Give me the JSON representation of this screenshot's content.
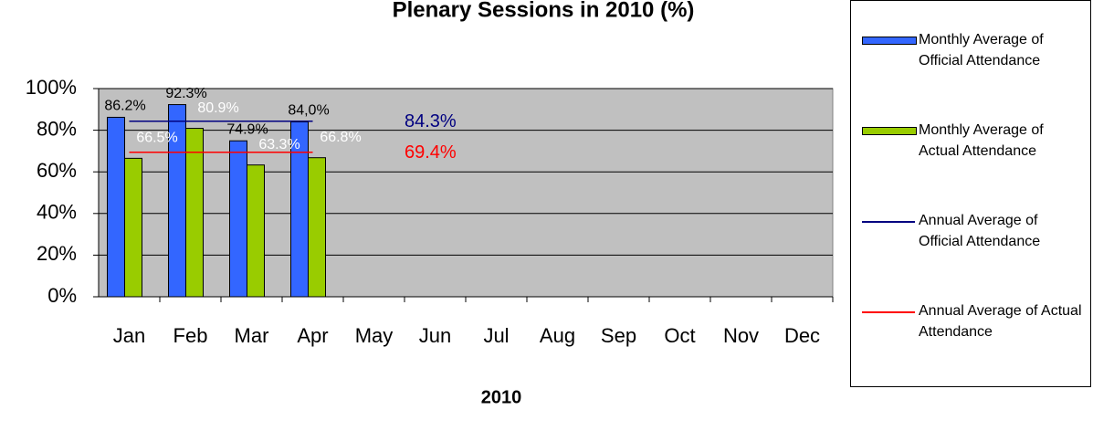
{
  "chart_data": {
    "type": "bar",
    "title": "Plenary Sessions in 2010 (%)",
    "xlabel": "2010",
    "categories": [
      "Jan",
      "Feb",
      "Mar",
      "Apr",
      "May",
      "Jun",
      "Jul",
      "Aug",
      "Sep",
      "Oct",
      "Nov",
      "Dec"
    ],
    "series": [
      {
        "name": "Monthly Average of Official Attendance",
        "type": "bar",
        "color": "#3366ff",
        "values": [
          86.2,
          92.3,
          74.9,
          84.0,
          null,
          null,
          null,
          null,
          null,
          null,
          null,
          null
        ],
        "value_labels": [
          "86.2%",
          "92.3%",
          "74.9%",
          "84,0%",
          null,
          null,
          null,
          null,
          null,
          null,
          null,
          null
        ]
      },
      {
        "name": "Monthly Average of Actual Attendance",
        "type": "bar",
        "color": "#99cc00",
        "values": [
          66.5,
          80.9,
          63.3,
          66.8,
          null,
          null,
          null,
          null,
          null,
          null,
          null,
          null
        ],
        "value_labels": [
          "66.5%",
          "80.9%",
          "63.3%",
          "66.8%",
          null,
          null,
          null,
          null,
          null,
          null,
          null,
          null
        ]
      },
      {
        "name": "Annual Average of Official Attendance",
        "type": "line",
        "color": "#000080",
        "values": [
          84.3,
          84.3,
          84.3,
          84.3,
          null,
          null,
          null,
          null,
          null,
          null,
          null,
          null
        ],
        "annotation": "84.3%"
      },
      {
        "name": "Annual Average of Actual Attendance",
        "type": "line",
        "color": "#ff0000",
        "values": [
          69.4,
          69.4,
          69.4,
          69.4,
          null,
          null,
          null,
          null,
          null,
          null,
          null,
          null
        ],
        "annotation": "69.4%"
      }
    ],
    "ylim": [
      0,
      100
    ],
    "yticks": [
      {
        "value": 0,
        "label": "0%"
      },
      {
        "value": 20,
        "label": "20%"
      },
      {
        "value": 40,
        "label": "40%"
      },
      {
        "value": 60,
        "label": "60%"
      },
      {
        "value": 80,
        "label": "80%"
      },
      {
        "value": 100,
        "label": "100%"
      }
    ],
    "grid": true
  }
}
